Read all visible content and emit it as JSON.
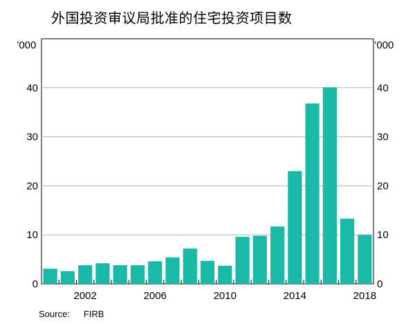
{
  "title": "外国投资审议局批准的住宅投资项目数",
  "source_label": "Source:",
  "source_value": "FIRB",
  "chart_data": {
    "type": "bar",
    "unit_left": "’000",
    "unit_right": "’000",
    "x": [
      2000,
      2001,
      2002,
      2003,
      2004,
      2005,
      2006,
      2007,
      2008,
      2009,
      2010,
      2011,
      2012,
      2013,
      2014,
      2015,
      2016,
      2017,
      2018
    ],
    "values": [
      3.1,
      2.6,
      3.8,
      4.2,
      3.8,
      3.8,
      4.6,
      5.4,
      7.2,
      4.7,
      3.7,
      9.6,
      9.8,
      11.7,
      23.0,
      36.8,
      40.1,
      13.3,
      10.0
    ],
    "x_tick_labels": [
      "2002",
      "2006",
      "2010",
      "2014",
      "2018"
    ],
    "y_ticks": [
      0,
      10,
      20,
      30,
      40
    ],
    "ylim": [
      0,
      50
    ],
    "xlim": [
      1999.5,
      2018.5
    ],
    "bar_color": "#1ab8a6",
    "grid": true
  }
}
